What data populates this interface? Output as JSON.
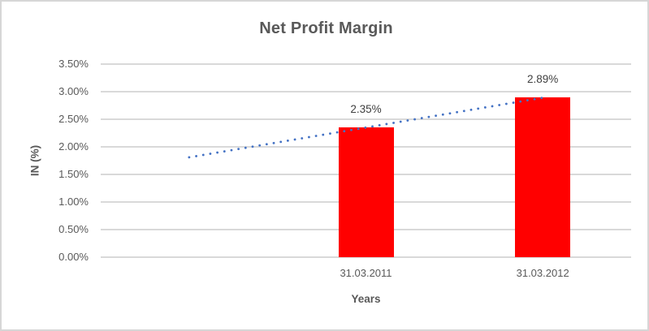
{
  "chart_data": {
    "type": "bar",
    "title": "Net Profit Margin",
    "categories": [
      "31.03.2011",
      "31.03.2012"
    ],
    "values": [
      2.35,
      2.89
    ],
    "data_labels": [
      "2.35%",
      "2.89%"
    ],
    "xlabel": "Years",
    "ylabel": "IN (%)",
    "ylim": [
      0,
      3.5
    ],
    "ytick_step": 0.5,
    "ytick_labels": [
      "0.00%",
      "0.50%",
      "1.00%",
      "1.50%",
      "2.00%",
      "2.50%",
      "3.00%",
      "3.50%"
    ],
    "grid": "horizontal",
    "legend": "none",
    "x_slots_total": 3,
    "bar_slot_indices": [
      1,
      2
    ],
    "bar_color": "#FF0000",
    "trendline": {
      "style": "dotted",
      "color": "#4472C4",
      "from_slot": 0.5,
      "to_slot": 2.5,
      "from_value": 1.81,
      "to_value": 2.89
    },
    "gridline_color": "#D9D9D9",
    "axis_text_color": "#595959",
    "data_label_color": "#404040",
    "title_color": "#595959",
    "border_color": "#D6D6D6",
    "background_color": "#FFFFFF"
  }
}
